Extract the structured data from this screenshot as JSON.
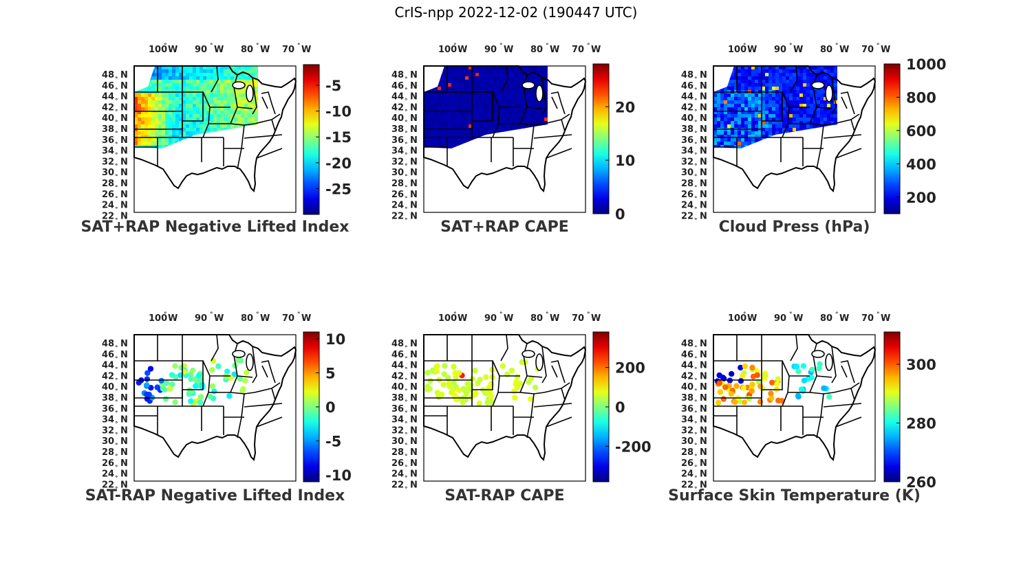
{
  "figure_title": "CrIS-npp 2022-12-02 (190447 UTC)",
  "map_ticks": {
    "lon": [
      "100",
      "90",
      "80",
      "70"
    ],
    "lat": [
      "48",
      "46",
      "44",
      "42",
      "40",
      "38",
      "36",
      "34",
      "32",
      "30",
      "28",
      "26",
      "24",
      "22"
    ],
    "lon_suffix": "W",
    "lat_suffix": "N",
    "degree_symbol": "°"
  },
  "panels": [
    {
      "id": "p1",
      "title": "SAT+RAP Negative Lifted Index",
      "colorbar": {
        "ticks": [
          "-5",
          "-10",
          "-15",
          "-20",
          "-25"
        ],
        "min": -30,
        "max": -1
      }
    },
    {
      "id": "p2",
      "title": "SAT+RAP CAPE",
      "colorbar": {
        "ticks": [
          "20",
          "10",
          "0"
        ],
        "min": 0,
        "max": 28
      }
    },
    {
      "id": "p3",
      "title": "Cloud Press (hPa)",
      "colorbar": {
        "ticks": [
          "1000",
          "800",
          "600",
          "400",
          "200"
        ],
        "min": 100,
        "max": 1000
      }
    },
    {
      "id": "p4",
      "title": "SAT-RAP Negative Lifted Index",
      "colorbar": {
        "ticks": [
          "10",
          "5",
          "0",
          "-5",
          "-10"
        ],
        "min": -11,
        "max": 11
      }
    },
    {
      "id": "p5",
      "title": "SAT-RAP CAPE",
      "colorbar": {
        "ticks": [
          "200",
          "0",
          "-200"
        ],
        "min": -380,
        "max": 380
      }
    },
    {
      "id": "p6",
      "title": "Surface Skin Temperature (K)",
      "colorbar": {
        "ticks": [
          "300",
          "280",
          "260"
        ],
        "min": 260,
        "max": 311
      }
    }
  ],
  "colormap": "jet",
  "chart_data": [
    {
      "type": "heatmap",
      "title": "SAT+RAP Negative Lifted Index",
      "colorbar_range": [
        -30,
        -1
      ],
      "lon_ticks": [
        "100 W",
        "90 W",
        "80 W",
        "70 W"
      ],
      "lat_ticks": [
        "48 N",
        "46 N",
        "44 N",
        "42 N",
        "40 N",
        "38 N",
        "36 N",
        "34 N",
        "32 N",
        "30 N",
        "28 N",
        "26 N",
        "24 N",
        "22 N"
      ]
    },
    {
      "type": "heatmap",
      "title": "SAT+RAP CAPE",
      "colorbar_range": [
        0,
        28
      ]
    },
    {
      "type": "heatmap",
      "title": "Cloud Press (hPa)",
      "colorbar_range": [
        100,
        1000
      ]
    },
    {
      "type": "scatter",
      "title": "SAT-RAP Negative Lifted Index",
      "colorbar_range": [
        -11,
        11
      ]
    },
    {
      "type": "scatter",
      "title": "SAT-RAP CAPE",
      "colorbar_range": [
        -380,
        380
      ]
    },
    {
      "type": "scatter",
      "title": "Surface Skin Temperature (K)",
      "colorbar_range": [
        260,
        311
      ]
    }
  ]
}
